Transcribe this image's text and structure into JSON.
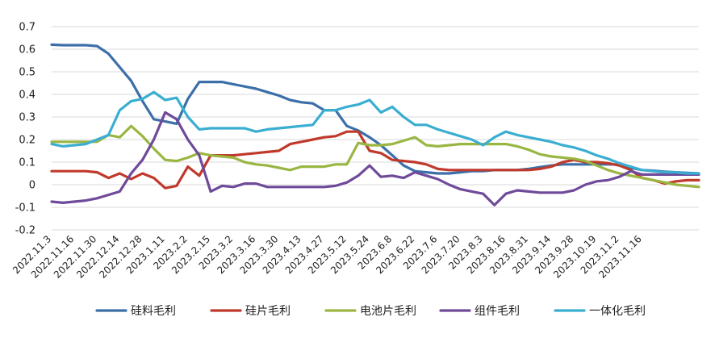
{
  "chart_data": {
    "type": "line",
    "title": "",
    "xlabel": "",
    "ylabel": "",
    "ylim": [
      -0.2,
      0.7
    ],
    "yticks": [
      -0.2,
      -0.1,
      0,
      0.1,
      0.2,
      0.3,
      0.4,
      0.5,
      0.6,
      0.7
    ],
    "ytick_labels": [
      "-0.2",
      "-0.1",
      "0",
      "0.1",
      "0.2",
      "0.3",
      "0.4",
      "0.5",
      "0.6",
      "0.7"
    ],
    "grid": true,
    "legend_position": "bottom",
    "x_count": 58,
    "x_tick_labels": [
      {
        "i": 0,
        "label": "2022.11.3"
      },
      {
        "i": 2,
        "label": "2022.11.16"
      },
      {
        "i": 4,
        "label": "2022.11.30"
      },
      {
        "i": 6,
        "label": "2022.12.14"
      },
      {
        "i": 8,
        "label": "2022.12.28"
      },
      {
        "i": 10,
        "label": "2023.1.11"
      },
      {
        "i": 12,
        "label": "2023.2.2"
      },
      {
        "i": 14,
        "label": "2023.2.15"
      },
      {
        "i": 16,
        "label": "2023.3.2"
      },
      {
        "i": 18,
        "label": "2023.3.16"
      },
      {
        "i": 20,
        "label": "2023.3.30"
      },
      {
        "i": 22,
        "label": "2023.4.13"
      },
      {
        "i": 24,
        "label": "2023.4.27"
      },
      {
        "i": 26,
        "label": "2023.5.12"
      },
      {
        "i": 28,
        "label": "2023.5.24"
      },
      {
        "i": 30,
        "label": "2023.6.8"
      },
      {
        "i": 32,
        "label": "2023.6.22"
      },
      {
        "i": 34,
        "label": "2023.7.6"
      },
      {
        "i": 36,
        "label": "2023.7.20"
      },
      {
        "i": 38,
        "label": "2023.8.3"
      },
      {
        "i": 40,
        "label": "2023.8.16"
      },
      {
        "i": 42,
        "label": "2023.8.31"
      },
      {
        "i": 44,
        "label": "2023.9.14"
      },
      {
        "i": 46,
        "label": "2023.9.28"
      },
      {
        "i": 48,
        "label": "2023.10.19"
      },
      {
        "i": 50,
        "label": "2023.11.2"
      },
      {
        "i": 52,
        "label": "2023.11.16"
      }
    ],
    "series": [
      {
        "name": "硅料毛利",
        "color": "#3c6fa8",
        "values": [
          0.62,
          0.618,
          0.618,
          0.618,
          0.614,
          0.58,
          0.52,
          0.46,
          0.37,
          0.29,
          0.28,
          0.27,
          0.38,
          0.455,
          0.455,
          0.455,
          0.445,
          0.435,
          0.425,
          0.41,
          0.395,
          0.375,
          0.365,
          0.36,
          0.33,
          0.33,
          0.26,
          0.24,
          0.21,
          0.175,
          0.13,
          0.085,
          0.06,
          0.055,
          0.05,
          0.05,
          0.055,
          0.06,
          0.06,
          0.065,
          0.065,
          0.065,
          0.07,
          0.078,
          0.085,
          0.09,
          0.09,
          0.09,
          0.09,
          0.09,
          0.09,
          0.075,
          0.065,
          0.062,
          0.058,
          0.055,
          0.052,
          0.05
        ]
      },
      {
        "name": "硅片毛利",
        "color": "#c0392b",
        "values": [
          0.06,
          0.06,
          0.06,
          0.06,
          0.055,
          0.03,
          0.05,
          0.025,
          0.05,
          0.03,
          -0.015,
          -0.005,
          0.08,
          0.04,
          0.13,
          0.13,
          0.13,
          0.135,
          0.14,
          0.145,
          0.15,
          0.18,
          0.19,
          0.2,
          0.21,
          0.215,
          0.235,
          0.235,
          0.15,
          0.14,
          0.11,
          0.105,
          0.1,
          0.09,
          0.07,
          0.065,
          0.065,
          0.065,
          0.065,
          0.065,
          0.065,
          0.065,
          0.065,
          0.07,
          0.08,
          0.1,
          0.11,
          0.1,
          0.1,
          0.095,
          0.085,
          0.065,
          0.03,
          0.02,
          0.005,
          0.015,
          0.02,
          0.02
        ]
      },
      {
        "name": "电池片毛利",
        "color": "#9ab642",
        "values": [
          0.19,
          0.19,
          0.19,
          0.19,
          0.19,
          0.22,
          0.21,
          0.26,
          0.215,
          0.16,
          0.11,
          0.105,
          0.12,
          0.14,
          0.13,
          0.125,
          0.12,
          0.1,
          0.09,
          0.085,
          0.075,
          0.065,
          0.08,
          0.08,
          0.08,
          0.09,
          0.09,
          0.185,
          0.175,
          0.175,
          0.18,
          0.195,
          0.21,
          0.175,
          0.17,
          0.175,
          0.18,
          0.18,
          0.18,
          0.18,
          0.18,
          0.17,
          0.155,
          0.135,
          0.125,
          0.12,
          0.115,
          0.105,
          0.085,
          0.065,
          0.05,
          0.04,
          0.03,
          0.02,
          0.01,
          0.0,
          -0.005,
          -0.01
        ]
      },
      {
        "name": "组件毛利",
        "color": "#6f4a9a",
        "values": [
          -0.075,
          -0.08,
          -0.075,
          -0.07,
          -0.06,
          -0.045,
          -0.03,
          0.05,
          0.11,
          0.2,
          0.32,
          0.29,
          0.2,
          0.13,
          -0.03,
          -0.005,
          -0.01,
          0.005,
          0.005,
          -0.01,
          -0.01,
          -0.01,
          -0.01,
          -0.01,
          -0.01,
          -0.005,
          0.01,
          0.04,
          0.085,
          0.035,
          0.04,
          0.03,
          0.055,
          0.04,
          0.025,
          0.0,
          -0.02,
          -0.03,
          -0.04,
          -0.09,
          -0.04,
          -0.025,
          -0.03,
          -0.035,
          -0.035,
          -0.035,
          -0.025,
          0.0,
          0.015,
          0.02,
          0.035,
          0.06,
          0.045,
          0.045,
          0.045,
          0.045,
          0.045,
          0.045
        ]
      },
      {
        "name": "一体化毛利",
        "color": "#3aaed1",
        "values": [
          0.18,
          0.17,
          0.175,
          0.18,
          0.2,
          0.22,
          0.33,
          0.37,
          0.38,
          0.41,
          0.375,
          0.385,
          0.3,
          0.245,
          0.25,
          0.25,
          0.25,
          0.25,
          0.235,
          0.245,
          0.25,
          0.255,
          0.26,
          0.265,
          0.33,
          0.33,
          0.345,
          0.355,
          0.375,
          0.32,
          0.345,
          0.3,
          0.265,
          0.265,
          0.245,
          0.23,
          0.215,
          0.2,
          0.175,
          0.21,
          0.235,
          0.22,
          0.21,
          0.2,
          0.19,
          0.175,
          0.165,
          0.15,
          0.13,
          0.115,
          0.095,
          0.08,
          0.065,
          0.06,
          0.055,
          0.055,
          0.05,
          0.05
        ]
      }
    ]
  }
}
